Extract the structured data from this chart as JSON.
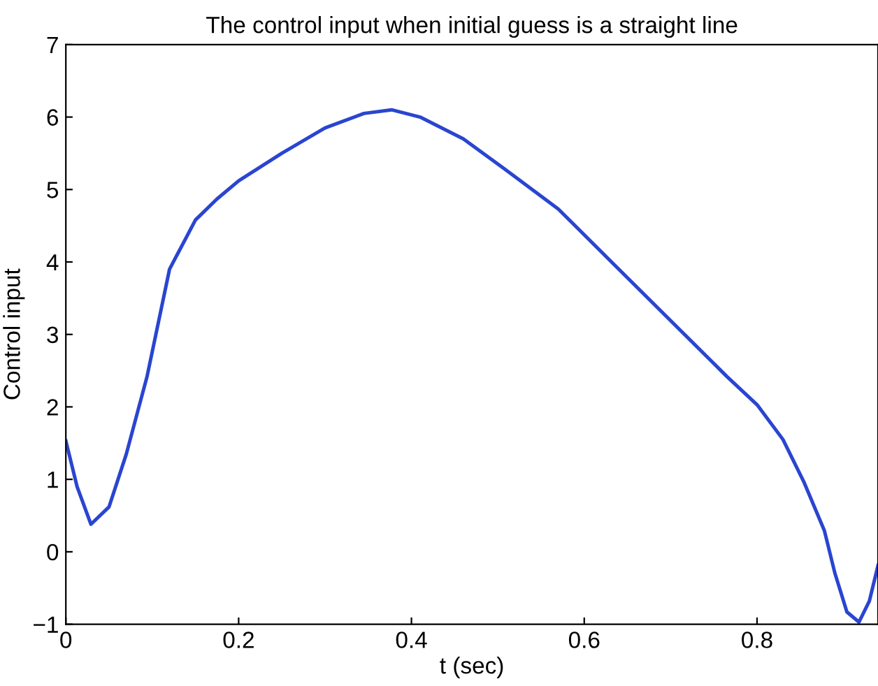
{
  "chart_data": {
    "type": "line",
    "title": "The control input when initial guess is a straight line",
    "xlabel": "t (sec)",
    "ylabel": "Control input",
    "series": [
      {
        "color": "#2a45d0",
        "x": [
          0,
          0.013,
          0.029,
          0.05,
          0.07,
          0.094,
          0.12,
          0.15,
          0.175,
          0.2,
          0.25,
          0.3,
          0.345,
          0.377,
          0.41,
          0.46,
          0.506,
          0.57,
          0.635,
          0.7,
          0.765,
          0.8,
          0.83,
          0.854,
          0.878,
          0.89,
          0.904,
          0.918,
          0.93,
          0.94
        ],
        "values": [
          1.53,
          0.9,
          0.38,
          0.62,
          1.35,
          2.42,
          3.9,
          4.58,
          4.87,
          5.12,
          5.5,
          5.85,
          6.05,
          6.1,
          6.0,
          5.7,
          5.3,
          4.73,
          3.96,
          3.19,
          2.42,
          2.03,
          1.55,
          0.97,
          0.29,
          -0.29,
          -0.83,
          -0.97,
          -0.68,
          -0.19
        ]
      }
    ],
    "xlim": [
      0,
      0.94
    ],
    "ylim": [
      -1,
      7
    ],
    "xticks": [
      0,
      0.2,
      0.4,
      0.6,
      0.8
    ],
    "yticks": [
      -1,
      0,
      1,
      2,
      3,
      4,
      5,
      6,
      7
    ],
    "grid": false,
    "legend": false,
    "line_style": "solid",
    "marker": "none"
  }
}
